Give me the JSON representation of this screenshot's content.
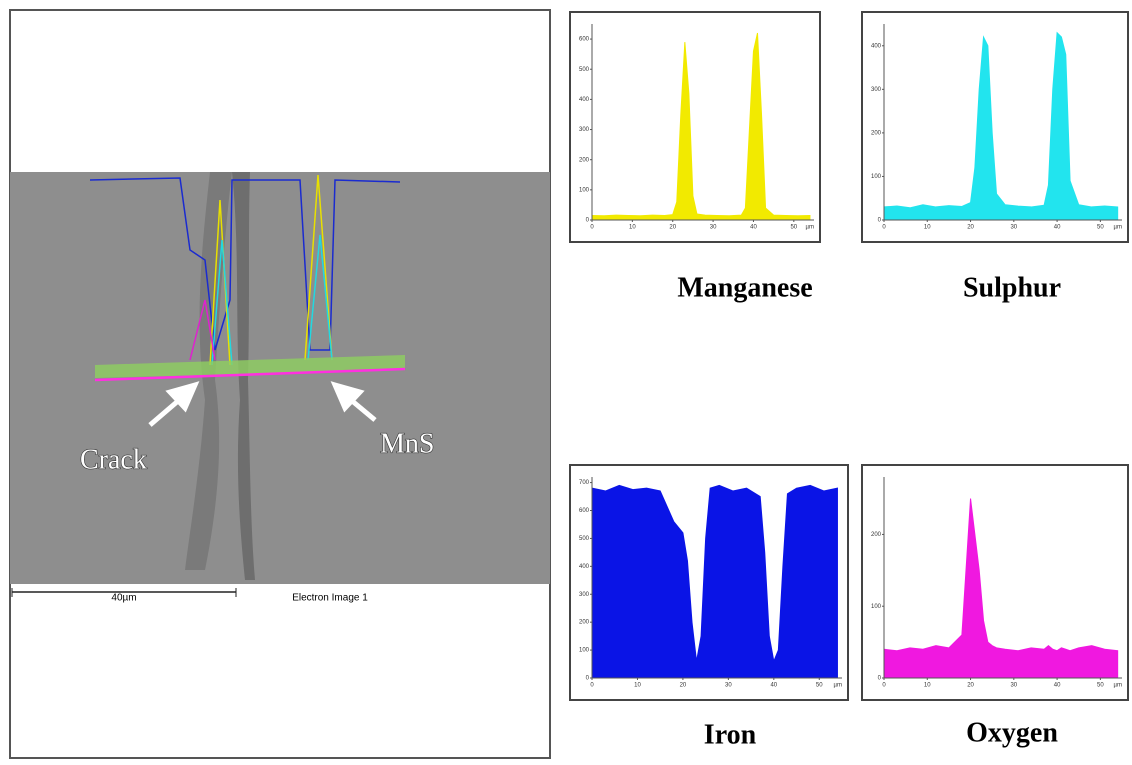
{
  "image": {
    "labels": [
      "Crack",
      "MnS"
    ],
    "scale_bar": "40µm",
    "caption": "Electron Image 1"
  },
  "chart_data": [
    {
      "type": "area",
      "title": "Manganese",
      "color": "#f2ea00",
      "x_unit": "µm",
      "x": [
        0,
        3,
        6,
        9,
        12,
        15,
        18,
        20,
        21,
        22,
        23,
        24,
        25,
        26,
        28,
        31,
        34,
        37,
        38,
        39,
        40,
        41,
        42,
        43,
        45,
        48,
        51,
        54
      ],
      "values": [
        15,
        14,
        16,
        15,
        14,
        16,
        15,
        18,
        60,
        350,
        590,
        420,
        80,
        20,
        16,
        15,
        14,
        16,
        40,
        300,
        560,
        620,
        350,
        40,
        16,
        15,
        14,
        15
      ],
      "xlim": [
        0,
        55
      ],
      "xticks": [
        0,
        10,
        20,
        30,
        40,
        50
      ],
      "ylim": [
        0,
        650
      ],
      "yticks": [
        0,
        100,
        200,
        300,
        400,
        500,
        600
      ]
    },
    {
      "type": "area",
      "title": "Sulphur",
      "color": "#22e4ee",
      "x_unit": "µm",
      "x": [
        0,
        3,
        6,
        9,
        12,
        15,
        18,
        20,
        21,
        22,
        23,
        24,
        25,
        26,
        28,
        31,
        34,
        37,
        38,
        39,
        40,
        41,
        42,
        43,
        45,
        48,
        51,
        54
      ],
      "values": [
        30,
        32,
        28,
        35,
        30,
        33,
        31,
        40,
        120,
        300,
        420,
        400,
        200,
        60,
        35,
        32,
        30,
        34,
        80,
        300,
        430,
        420,
        380,
        90,
        35,
        30,
        32,
        30
      ],
      "xlim": [
        0,
        55
      ],
      "xticks": [
        0,
        10,
        20,
        30,
        40,
        50
      ],
      "ylim": [
        0,
        450
      ],
      "yticks": [
        0,
        100,
        200,
        300,
        400
      ]
    },
    {
      "type": "area",
      "title": "Iron",
      "color": "#0a14e6",
      "x_unit": "µm",
      "x": [
        0,
        3,
        6,
        9,
        12,
        15,
        18,
        20,
        21,
        22,
        23,
        24,
        25,
        26,
        28,
        31,
        34,
        37,
        38,
        39,
        40,
        41,
        42,
        43,
        45,
        48,
        51,
        54
      ],
      "values": [
        680,
        670,
        690,
        675,
        680,
        670,
        560,
        520,
        420,
        200,
        60,
        150,
        500,
        680,
        690,
        670,
        680,
        650,
        450,
        150,
        60,
        100,
        400,
        660,
        680,
        690,
        670,
        680
      ],
      "xlim": [
        0,
        55
      ],
      "xticks": [
        0,
        10,
        20,
        30,
        40,
        50
      ],
      "ylim": [
        0,
        720
      ],
      "yticks": [
        0,
        100,
        200,
        300,
        400,
        500,
        600,
        700
      ]
    },
    {
      "type": "area",
      "title": "Oxygen",
      "color": "#f018e0",
      "x_unit": "µm",
      "x": [
        0,
        3,
        6,
        9,
        12,
        15,
        18,
        20,
        21,
        22,
        23,
        24,
        25,
        26,
        28,
        31,
        34,
        37,
        38,
        39,
        40,
        41,
        42,
        43,
        45,
        48,
        51,
        54
      ],
      "values": [
        40,
        38,
        42,
        40,
        45,
        42,
        60,
        250,
        200,
        150,
        80,
        50,
        45,
        42,
        40,
        38,
        42,
        40,
        45,
        40,
        38,
        42,
        40,
        38,
        42,
        45,
        40,
        38
      ],
      "xlim": [
        0,
        55
      ],
      "xticks": [
        0,
        10,
        20,
        30,
        40,
        50
      ],
      "ylim": [
        0,
        280
      ],
      "yticks": [
        0,
        100,
        200
      ]
    }
  ]
}
